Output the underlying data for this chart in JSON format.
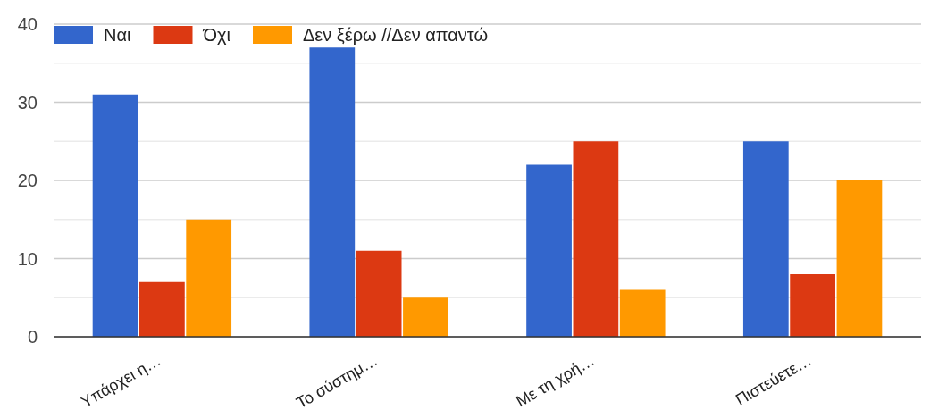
{
  "chart_data": {
    "type": "bar",
    "categories": [
      "Υπάρχει η…",
      "Το σύστημ…",
      "Με τη χρή…",
      "Πιστεύετε…"
    ],
    "series": [
      {
        "name": "Ναι",
        "color": "#3366cc",
        "values": [
          31,
          37,
          22,
          25
        ]
      },
      {
        "name": "Όχι",
        "color": "#dc3912",
        "values": [
          7,
          11,
          25,
          8
        ]
      },
      {
        "name": "Δεν ξέρω //Δεν απαντώ",
        "color": "#ff9900",
        "values": [
          15,
          5,
          6,
          20
        ]
      }
    ],
    "ylim": [
      0,
      40
    ],
    "yticks": [
      0,
      {
        "value": 5,
        "label": null
      },
      10,
      {
        "value": 15,
        "label": null
      },
      20,
      {
        "value": 25,
        "label": null
      },
      30,
      {
        "value": 35,
        "label": null
      },
      40
    ],
    "grid": "y",
    "legend": "top left"
  }
}
